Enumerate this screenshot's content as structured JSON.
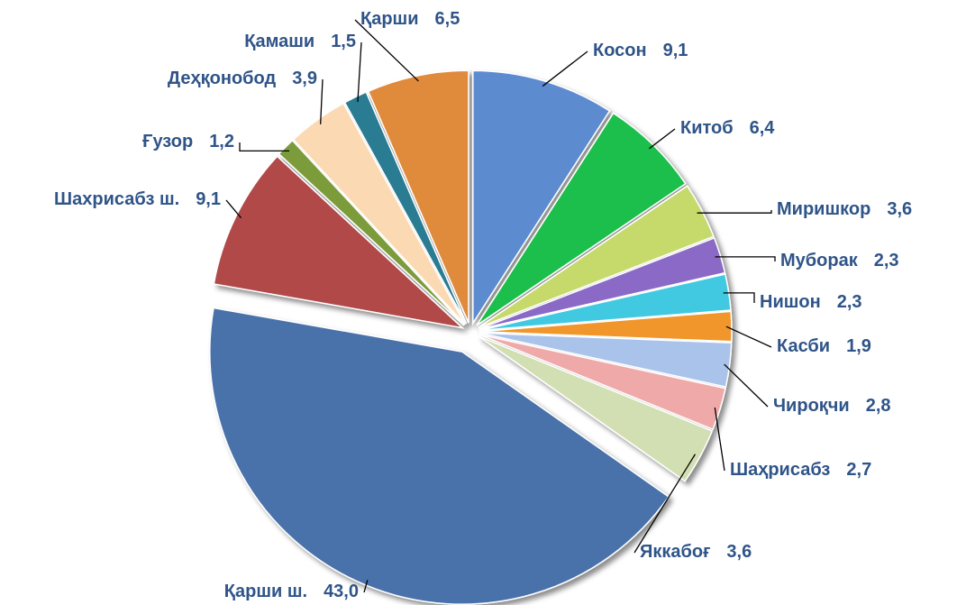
{
  "chart_data": {
    "type": "pie",
    "categories": [
      "Косон",
      "Китоб",
      "Миришкор",
      "Муборак",
      "Нишон",
      "Касби",
      "Чироқчи",
      "Шаҳрисабз",
      "Яккабоғ",
      "Қарши ш.",
      "Шахрисабз ш.",
      "Ғузор",
      "Деҳқонобод",
      "Қамаши",
      "Қарши"
    ],
    "values": [
      9.1,
      6.4,
      3.6,
      2.3,
      2.3,
      1.9,
      2.8,
      2.7,
      3.6,
      43.0,
      9.1,
      1.2,
      3.9,
      1.5,
      6.5
    ],
    "value_labels": [
      "9,1",
      "6,4",
      "3,6",
      "2,3",
      "2,3",
      "1,9",
      "2,8",
      "2,7",
      "3,6",
      "43,0",
      "9,1",
      "1,2",
      "3,9",
      "1,5",
      "6,5"
    ],
    "colors": [
      "#5b8bd0",
      "#1fbf4c",
      "#c6da6c",
      "#8a6ac6",
      "#43c9e2",
      "#f0962c",
      "#a9c3ea",
      "#f0a9a9",
      "#d2dfb2",
      "#4a72aa",
      "#b14a48",
      "#7b9b3a",
      "#fbd9b2",
      "#2b7b92",
      "#e08a3a"
    ]
  }
}
